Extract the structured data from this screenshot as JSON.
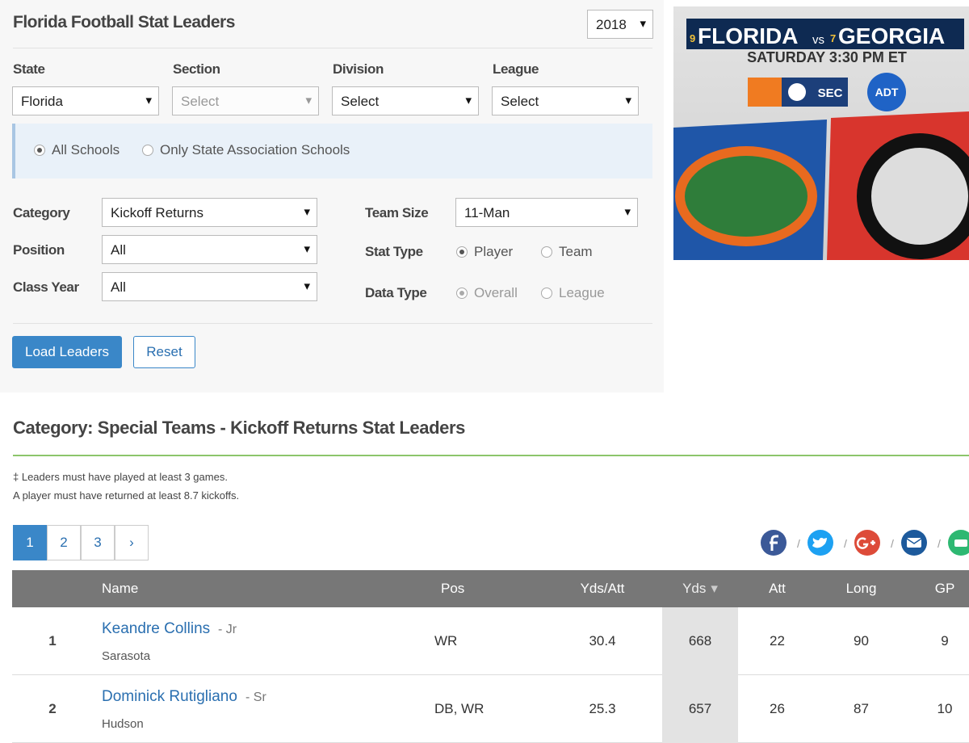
{
  "header": {
    "title": "Florida Football Stat Leaders",
    "year": "2018"
  },
  "filters": [
    {
      "label": "State",
      "value": "Florida",
      "disabled": false
    },
    {
      "label": "Section",
      "value": "Select",
      "disabled": true
    },
    {
      "label": "Division",
      "value": "Select",
      "disabled": false
    },
    {
      "label": "League",
      "value": "Select",
      "disabled": false
    }
  ],
  "school_scope": {
    "options": [
      "All Schools",
      "Only State Association Schools"
    ],
    "selected": 0
  },
  "left_options": [
    {
      "label": "Category",
      "value": "Kickoff Returns"
    },
    {
      "label": "Position",
      "value": "All"
    },
    {
      "label": "Class Year",
      "value": "All"
    }
  ],
  "team_size": {
    "label": "Team Size",
    "value": "11-Man"
  },
  "stat_type": {
    "label": "Stat Type",
    "options": [
      "Player",
      "Team"
    ],
    "selected": 0,
    "disabled": false
  },
  "data_type": {
    "label": "Data Type",
    "options": [
      "Overall",
      "League"
    ],
    "selected": 0,
    "disabled": true
  },
  "buttons": {
    "load": "Load Leaders",
    "reset": "Reset"
  },
  "ad": {
    "home_rank": "9",
    "home_team": "FLORIDA",
    "vs": "vs",
    "away_rank": "7",
    "away_team": "GEORGIA",
    "time": "SATURDAY 3:30 PM ET",
    "sponsors": [
      "SEC",
      "ADT"
    ]
  },
  "results": {
    "heading": "Category: Special Teams - Kickoff Returns Stat Leaders",
    "notes": [
      "‡ Leaders must have played at least 3 games.",
      "A player must have returned at least 8.7 kickoffs."
    ],
    "pages": [
      "1",
      "2",
      "3",
      "›"
    ],
    "current_page": 0
  },
  "table": {
    "columns": [
      "Name",
      "Pos",
      "Yds/Att",
      "Yds",
      "Att",
      "Long",
      "GP"
    ],
    "sort_column": 3,
    "rows": [
      {
        "rank": 1,
        "name": "Keandre Collins",
        "class": "- Jr",
        "school": "Sarasota",
        "pos": "WR",
        "yds_att": 30.4,
        "yds": 668,
        "att": 22,
        "long": 90,
        "gp": 9
      },
      {
        "rank": 2,
        "name": "Dominick Rutigliano",
        "class": "- Sr",
        "school": "Hudson",
        "pos": "DB, WR",
        "yds_att": 25.3,
        "yds": 657,
        "att": 26,
        "long": 87,
        "gp": 10
      }
    ]
  }
}
